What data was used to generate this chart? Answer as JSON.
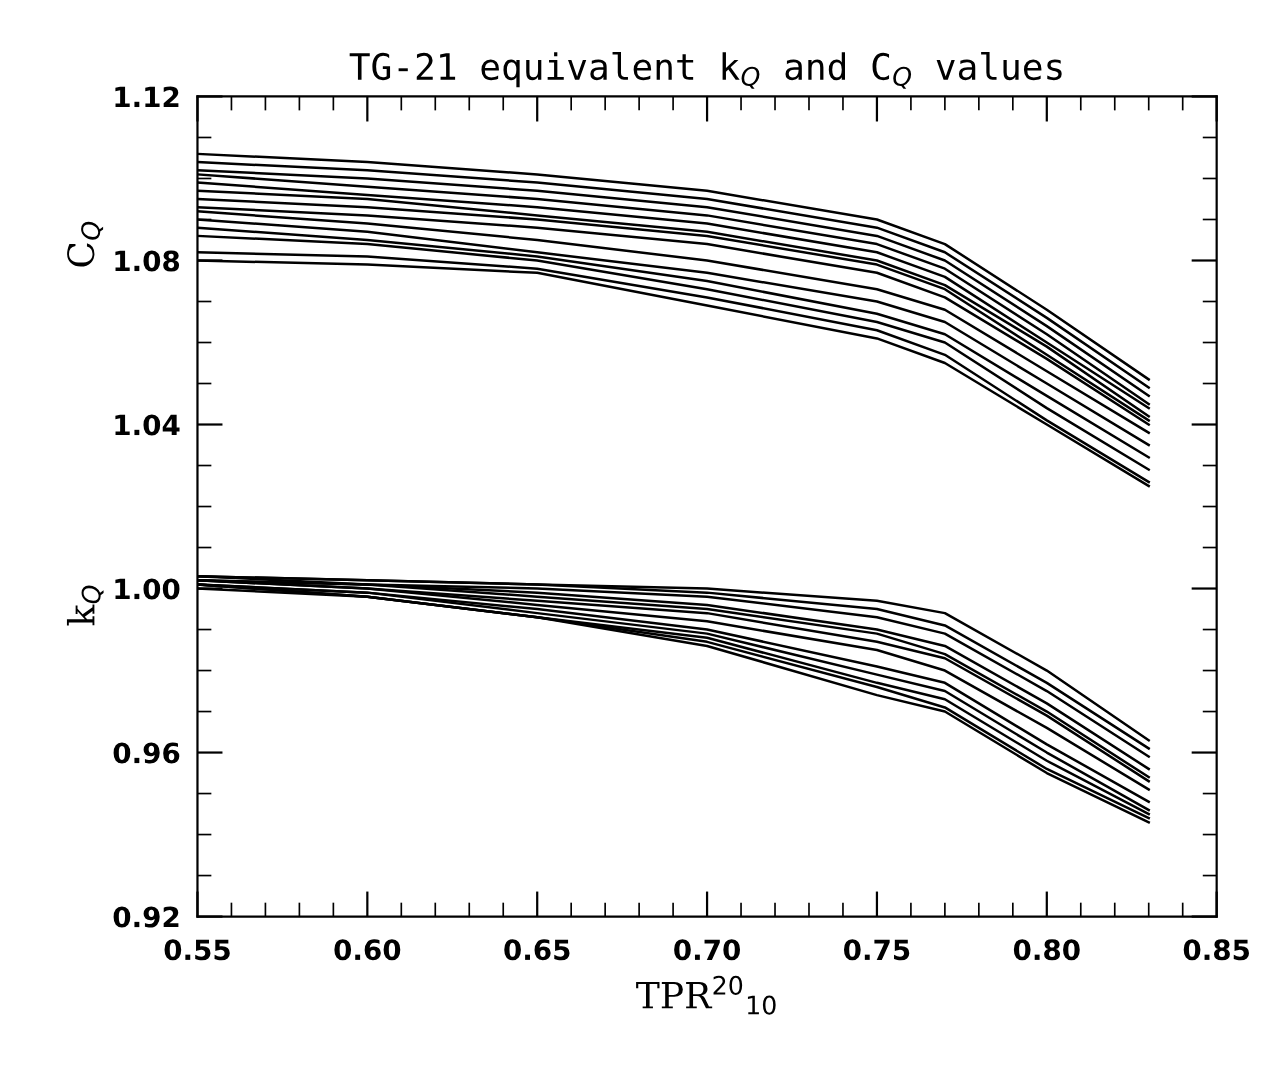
{
  "chart_data": {
    "type": "line",
    "title": "TG-21 equivalent k$_{Q}$ and C$_{Q}$ values",
    "xlabel": "TPR$^{20}$$_{10}$",
    "annotations": [
      "C$_{Q}$",
      "k$_{Q}$"
    ],
    "x": [
      0.55,
      0.6,
      0.65,
      0.7,
      0.75,
      0.77,
      0.8,
      0.83
    ],
    "xlim": [
      0.55,
      0.85
    ],
    "xticks": [
      {
        "value": 0.55,
        "label": "0.55"
      },
      {
        "value": 0.6,
        "label": "0.60"
      },
      {
        "value": 0.65,
        "label": "0.65"
      },
      {
        "value": 0.7,
        "label": "0.70"
      },
      {
        "value": 0.75,
        "label": "0.75"
      },
      {
        "value": 0.8,
        "label": "0.80"
      },
      {
        "value": 0.85,
        "label": "0.85"
      }
    ],
    "ylim": [
      0.92,
      1.12
    ],
    "yticks": [
      0.92,
      0.96,
      {
        "value": 1.0,
        "label": "1.00"
      },
      1.04,
      1.08,
      1.12
    ],
    "grid": false,
    "legend": false,
    "marker": "none",
    "line_style": "solid",
    "series": [
      {
        "color": "#000000",
        "values": [
          1.106,
          1.104,
          1.101,
          1.097,
          1.09,
          1.084,
          1.068,
          1.051
        ]
      },
      {
        "color": "#000000",
        "values": [
          1.104,
          1.102,
          1.099,
          1.095,
          1.088,
          1.082,
          1.066,
          1.049
        ]
      },
      {
        "color": "#000000",
        "values": [
          1.102,
          1.1,
          1.097,
          1.093,
          1.086,
          1.08,
          1.064,
          1.047
        ]
      },
      {
        "color": "#000000",
        "values": [
          1.101,
          1.098,
          1.095,
          1.091,
          1.084,
          1.078,
          1.062,
          1.045
        ]
      },
      {
        "color": "#000000",
        "values": [
          1.099,
          1.096,
          1.093,
          1.089,
          1.082,
          1.076,
          1.06,
          1.044
        ]
      },
      {
        "color": "#000000",
        "values": [
          1.097,
          1.095,
          1.091,
          1.087,
          1.08,
          1.074,
          1.059,
          1.042
        ]
      },
      {
        "color": "#000000",
        "values": [
          1.095,
          1.093,
          1.09,
          1.086,
          1.079,
          1.073,
          1.057,
          1.041
        ]
      },
      {
        "color": "#000000",
        "values": [
          1.093,
          1.091,
          1.088,
          1.084,
          1.077,
          1.071,
          1.056,
          1.04
        ]
      },
      {
        "color": "#000000",
        "values": [
          1.092,
          1.089,
          1.085,
          1.08,
          1.073,
          1.068,
          1.053,
          1.038
        ]
      },
      {
        "color": "#000000",
        "values": [
          1.09,
          1.087,
          1.082,
          1.077,
          1.07,
          1.065,
          1.05,
          1.035
        ]
      },
      {
        "color": "#000000",
        "values": [
          1.088,
          1.085,
          1.081,
          1.075,
          1.067,
          1.062,
          1.047,
          1.032
        ]
      },
      {
        "color": "#000000",
        "values": [
          1.086,
          1.084,
          1.08,
          1.073,
          1.065,
          1.06,
          1.044,
          1.029
        ]
      },
      {
        "color": "#000000",
        "values": [
          1.082,
          1.081,
          1.078,
          1.071,
          1.063,
          1.057,
          1.041,
          1.026
        ]
      },
      {
        "color": "#000000",
        "values": [
          1.08,
          1.079,
          1.077,
          1.069,
          1.061,
          1.055,
          1.04,
          1.025
        ]
      },
      {
        "color": "#000000",
        "values": [
          1.003,
          1.002,
          1.001,
          1.0,
          0.997,
          0.994,
          0.98,
          0.963
        ]
      },
      {
        "color": "#000000",
        "values": [
          1.003,
          1.002,
          1.001,
          0.999,
          0.995,
          0.991,
          0.977,
          0.961
        ]
      },
      {
        "color": "#000000",
        "values": [
          1.003,
          1.001,
          1.0,
          0.998,
          0.993,
          0.989,
          0.975,
          0.959
        ]
      },
      {
        "color": "#000000",
        "values": [
          1.002,
          1.001,
          0.999,
          0.996,
          0.99,
          0.986,
          0.972,
          0.956
        ]
      },
      {
        "color": "#000000",
        "values": [
          1.002,
          1.001,
          0.998,
          0.995,
          0.989,
          0.984,
          0.97,
          0.954
        ]
      },
      {
        "color": "#000000",
        "values": [
          1.002,
          1.0,
          0.997,
          0.994,
          0.987,
          0.983,
          0.969,
          0.953
        ]
      },
      {
        "color": "#000000",
        "values": [
          1.002,
          1.0,
          0.996,
          0.992,
          0.985,
          0.98,
          0.966,
          0.951
        ]
      },
      {
        "color": "#000000",
        "values": [
          1.001,
          0.999,
          0.995,
          0.99,
          0.981,
          0.977,
          0.962,
          0.948
        ]
      },
      {
        "color": "#000000",
        "values": [
          1.001,
          0.999,
          0.994,
          0.989,
          0.979,
          0.975,
          0.96,
          0.946
        ]
      },
      {
        "color": "#000000",
        "values": [
          1.001,
          0.998,
          0.993,
          0.988,
          0.977,
          0.973,
          0.958,
          0.945
        ]
      },
      {
        "color": "#000000",
        "values": [
          1.001,
          0.998,
          0.993,
          0.987,
          0.976,
          0.971,
          0.956,
          0.944
        ]
      },
      {
        "color": "#000000",
        "values": [
          1.0,
          0.998,
          0.993,
          0.986,
          0.974,
          0.97,
          0.955,
          0.943
        ]
      }
    ]
  }
}
